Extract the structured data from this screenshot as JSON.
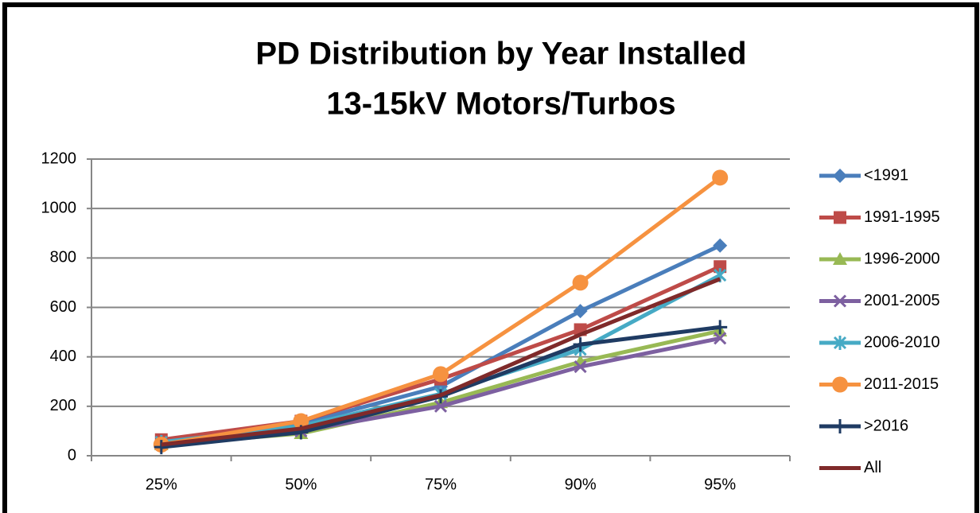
{
  "chart_data": {
    "type": "line",
    "title": [
      "PD Distribution by Year Installed",
      "13-15kV Motors/Turbos"
    ],
    "categories": [
      "25%",
      "50%",
      "75%",
      "90%",
      "95%"
    ],
    "ylim": [
      0,
      1200
    ],
    "yticks": [
      0,
      200,
      400,
      600,
      800,
      1000,
      1200
    ],
    "grid": true,
    "legend": "right",
    "series": [
      {
        "name": "<1991",
        "color": "#4a7ebb",
        "marker": "diamond",
        "values": [
          50,
          130,
          280,
          585,
          850
        ]
      },
      {
        "name": "1991-1995",
        "color": "#be4b48",
        "marker": "square",
        "values": [
          65,
          140,
          310,
          510,
          765
        ]
      },
      {
        "name": "1996-2000",
        "color": "#98b954",
        "marker": "triangle",
        "values": [
          45,
          90,
          215,
          380,
          505
        ]
      },
      {
        "name": "2001-2005",
        "color": "#7d60a0",
        "marker": "x",
        "values": [
          45,
          100,
          200,
          360,
          475
        ]
      },
      {
        "name": "2006-2010",
        "color": "#46aac5",
        "marker": "asterisk",
        "values": [
          55,
          120,
          250,
          430,
          730
        ]
      },
      {
        "name": "2011-2015",
        "color": "#f69240",
        "marker": "circle",
        "values": [
          45,
          140,
          330,
          700,
          1125
        ]
      },
      {
        "name": ">2016",
        "color": "#1f3b63",
        "marker": "plus",
        "values": [
          35,
          95,
          240,
          450,
          520
        ]
      },
      {
        "name": "All",
        "color": "#7f2a2a",
        "marker": "none",
        "values": [
          45,
          110,
          245,
          490,
          715
        ]
      }
    ]
  }
}
